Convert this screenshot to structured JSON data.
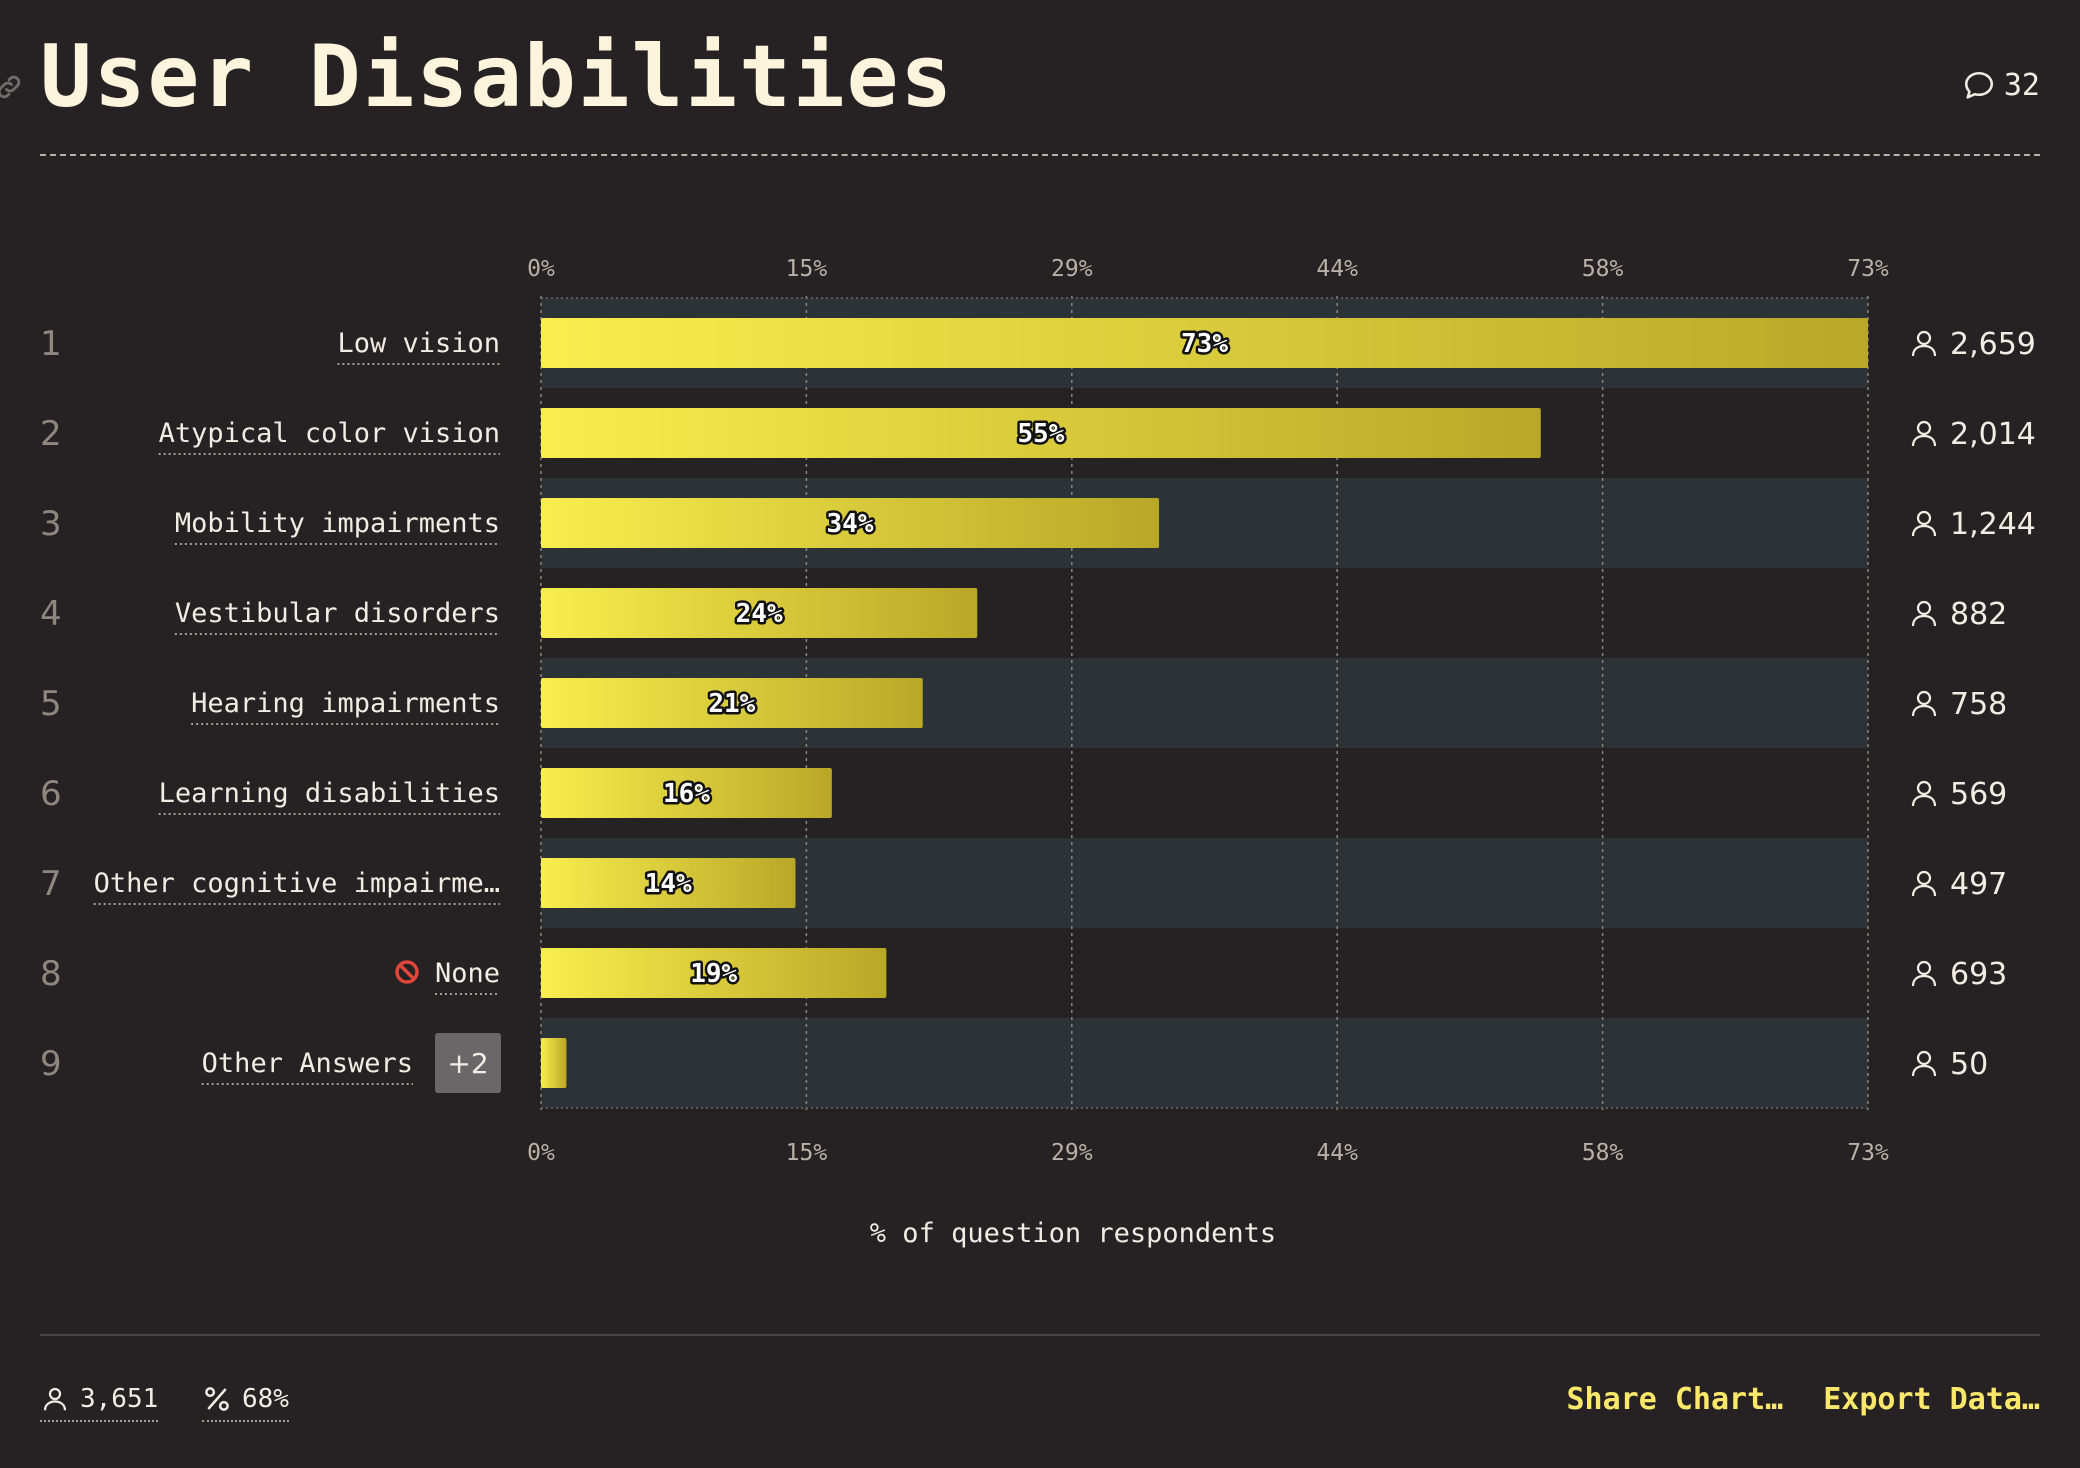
{
  "title": "User Disabilities",
  "comments": {
    "count": "32",
    "icon": "speech-bubble-icon"
  },
  "chart_data": {
    "type": "bar",
    "orientation": "horizontal",
    "xlabel": "% of question respondents",
    "xlim": [
      0,
      73
    ],
    "ticks": [
      "0%",
      "15%",
      "29%",
      "44%",
      "58%",
      "73%"
    ],
    "tick_values": [
      0,
      14.6,
      29.2,
      43.8,
      58.4,
      73
    ],
    "categories": [
      "Low vision",
      "Atypical color vision",
      "Mobility impairments",
      "Vestibular disorders",
      "Hearing impairments",
      "Learning disabilities",
      "Other cognitive impairme…",
      "None",
      "Other Answers"
    ],
    "ranks": [
      "1",
      "2",
      "3",
      "4",
      "5",
      "6",
      "7",
      "8",
      "9"
    ],
    "values": [
      73,
      55,
      34,
      24,
      21,
      16,
      14,
      19,
      1.4
    ],
    "value_labels": [
      "73%",
      "55%",
      "34%",
      "24%",
      "21%",
      "16%",
      "14%",
      "19%",
      ""
    ],
    "counts": [
      "2,659",
      "2,014",
      "1,244",
      "882",
      "758",
      "569",
      "497",
      "693",
      "50"
    ],
    "none_icon": "prohibited-icon",
    "other_answers_badge": "+2",
    "bar_color_start": "#f8ee4e",
    "bar_color_end": "#b9a827",
    "alt_row_color": "#2c3235",
    "grid": true
  },
  "footer": {
    "respondents": "3,651",
    "percent": "68%",
    "share_label": "Share Chart…",
    "export_label": "Export Data…",
    "accent": "#fbe86a"
  }
}
